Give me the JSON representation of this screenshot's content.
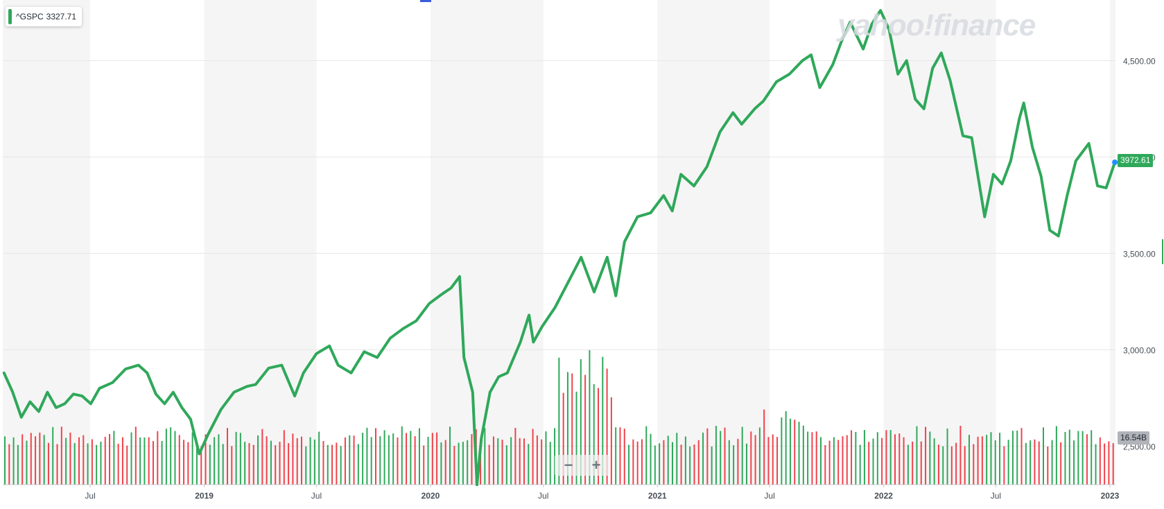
{
  "legend": {
    "symbol": "^GSPC",
    "value": "3327.71"
  },
  "last_price_label": "3972.61",
  "volume_label": "16.54B",
  "watermark": "yahoo!finance",
  "zoom": {
    "minus": "−",
    "plus": "+"
  },
  "colors": {
    "line": "#2fa85a",
    "up": "#2fa85a",
    "down": "#f0424b",
    "band": "#f5f5f5",
    "grid": "#e6e6e6",
    "marker": "#1e90ff"
  },
  "chart_data": {
    "type": "line",
    "x_ticks": [
      {
        "label": "Jul",
        "date": "2018-07-01",
        "bold": false
      },
      {
        "label": "2019",
        "date": "2019-01-01",
        "bold": true
      },
      {
        "label": "Jul",
        "date": "2019-07-01",
        "bold": false
      },
      {
        "label": "2020",
        "date": "2020-01-01",
        "bold": true
      },
      {
        "label": "Jul",
        "date": "2020-07-01",
        "bold": false
      },
      {
        "label": "2021",
        "date": "2021-01-01",
        "bold": true
      },
      {
        "label": "Jul",
        "date": "2021-07-01",
        "bold": false
      },
      {
        "label": "2022",
        "date": "2022-01-01",
        "bold": true
      },
      {
        "label": "Jul",
        "date": "2022-07-01",
        "bold": false
      },
      {
        "label": "2023",
        "date": "2023-01-01",
        "bold": true
      }
    ],
    "y_ticks": [
      {
        "label": "4,500.00",
        "value": 4500
      },
      {
        "label": "4,000.00",
        "value": 4000
      },
      {
        "label": "3,500.00",
        "value": 3500
      },
      {
        "label": "3,000.00",
        "value": 3000
      },
      {
        "label": "2,500.00",
        "value": 2500
      }
    ],
    "ylim": [
      2300,
      4800
    ],
    "xlim": [
      "2018-02-10",
      "2023-01-10"
    ],
    "grid": true,
    "series": [
      {
        "name": "^GSPC",
        "points": [
          [
            "2018-02-12",
            2880
          ],
          [
            "2018-02-26",
            2780
          ],
          [
            "2018-03-12",
            2650
          ],
          [
            "2018-03-26",
            2730
          ],
          [
            "2018-04-09",
            2680
          ],
          [
            "2018-04-23",
            2780
          ],
          [
            "2018-05-07",
            2700
          ],
          [
            "2018-05-21",
            2720
          ],
          [
            "2018-06-04",
            2770
          ],
          [
            "2018-06-18",
            2760
          ],
          [
            "2018-07-02",
            2720
          ],
          [
            "2018-07-16",
            2800
          ],
          [
            "2018-08-06",
            2830
          ],
          [
            "2018-08-27",
            2900
          ],
          [
            "2018-09-17",
            2920
          ],
          [
            "2018-10-01",
            2880
          ],
          [
            "2018-10-15",
            2770
          ],
          [
            "2018-10-29",
            2720
          ],
          [
            "2018-11-12",
            2780
          ],
          [
            "2018-11-26",
            2700
          ],
          [
            "2018-12-10",
            2640
          ],
          [
            "2018-12-24",
            2460
          ],
          [
            "2019-01-07",
            2560
          ],
          [
            "2019-01-28",
            2690
          ],
          [
            "2019-02-18",
            2780
          ],
          [
            "2019-03-11",
            2810
          ],
          [
            "2019-03-25",
            2820
          ],
          [
            "2019-04-15",
            2905
          ],
          [
            "2019-05-06",
            2920
          ],
          [
            "2019-05-27",
            2760
          ],
          [
            "2019-06-10",
            2880
          ],
          [
            "2019-07-01",
            2980
          ],
          [
            "2019-07-22",
            3020
          ],
          [
            "2019-08-05",
            2920
          ],
          [
            "2019-08-26",
            2880
          ],
          [
            "2019-09-16",
            2990
          ],
          [
            "2019-10-07",
            2960
          ],
          [
            "2019-10-28",
            3060
          ],
          [
            "2019-11-18",
            3110
          ],
          [
            "2019-12-09",
            3150
          ],
          [
            "2019-12-30",
            3240
          ],
          [
            "2020-01-20",
            3290
          ],
          [
            "2020-02-03",
            3320
          ],
          [
            "2020-02-17",
            3380
          ],
          [
            "2020-02-24",
            2960
          ],
          [
            "2020-03-09",
            2780
          ],
          [
            "2020-03-16",
            2300
          ],
          [
            "2020-03-23",
            2540
          ],
          [
            "2020-04-06",
            2780
          ],
          [
            "2020-04-20",
            2860
          ],
          [
            "2020-05-04",
            2880
          ],
          [
            "2020-05-25",
            3040
          ],
          [
            "2020-06-08",
            3180
          ],
          [
            "2020-06-15",
            3040
          ],
          [
            "2020-06-29",
            3120
          ],
          [
            "2020-07-20",
            3220
          ],
          [
            "2020-08-10",
            3350
          ],
          [
            "2020-08-31",
            3480
          ],
          [
            "2020-09-21",
            3300
          ],
          [
            "2020-10-12",
            3480
          ],
          [
            "2020-10-26",
            3280
          ],
          [
            "2020-11-09",
            3560
          ],
          [
            "2020-11-30",
            3690
          ],
          [
            "2020-12-21",
            3710
          ],
          [
            "2021-01-11",
            3800
          ],
          [
            "2021-01-25",
            3720
          ],
          [
            "2021-02-08",
            3910
          ],
          [
            "2021-03-01",
            3850
          ],
          [
            "2021-03-22",
            3950
          ],
          [
            "2021-04-12",
            4130
          ],
          [
            "2021-05-03",
            4230
          ],
          [
            "2021-05-17",
            4170
          ],
          [
            "2021-06-07",
            4250
          ],
          [
            "2021-06-21",
            4290
          ],
          [
            "2021-07-12",
            4390
          ],
          [
            "2021-08-02",
            4430
          ],
          [
            "2021-08-23",
            4500
          ],
          [
            "2021-09-06",
            4530
          ],
          [
            "2021-09-20",
            4360
          ],
          [
            "2021-10-11",
            4480
          ],
          [
            "2021-10-25",
            4600
          ],
          [
            "2021-11-08",
            4700
          ],
          [
            "2021-11-29",
            4560
          ],
          [
            "2021-12-13",
            4690
          ],
          [
            "2021-12-27",
            4760
          ],
          [
            "2022-01-10",
            4660
          ],
          [
            "2022-01-24",
            4430
          ],
          [
            "2022-02-07",
            4500
          ],
          [
            "2022-02-21",
            4300
          ],
          [
            "2022-03-07",
            4250
          ],
          [
            "2022-03-21",
            4460
          ],
          [
            "2022-04-04",
            4540
          ],
          [
            "2022-04-18",
            4400
          ],
          [
            "2022-05-09",
            4110
          ],
          [
            "2022-05-23",
            4100
          ],
          [
            "2022-06-13",
            3690
          ],
          [
            "2022-06-27",
            3910
          ],
          [
            "2022-07-11",
            3860
          ],
          [
            "2022-07-25",
            3980
          ],
          [
            "2022-08-08",
            4200
          ],
          [
            "2022-08-15",
            4280
          ],
          [
            "2022-08-29",
            4050
          ],
          [
            "2022-09-12",
            3900
          ],
          [
            "2022-09-26",
            3620
          ],
          [
            "2022-10-10",
            3590
          ],
          [
            "2022-10-24",
            3800
          ],
          [
            "2022-11-07",
            3980
          ],
          [
            "2022-11-28",
            4070
          ],
          [
            "2022-12-12",
            3850
          ],
          [
            "2022-12-26",
            3840
          ],
          [
            "2023-01-09",
            3972.61
          ]
        ]
      }
    ],
    "volume_bar_count": 255
  }
}
